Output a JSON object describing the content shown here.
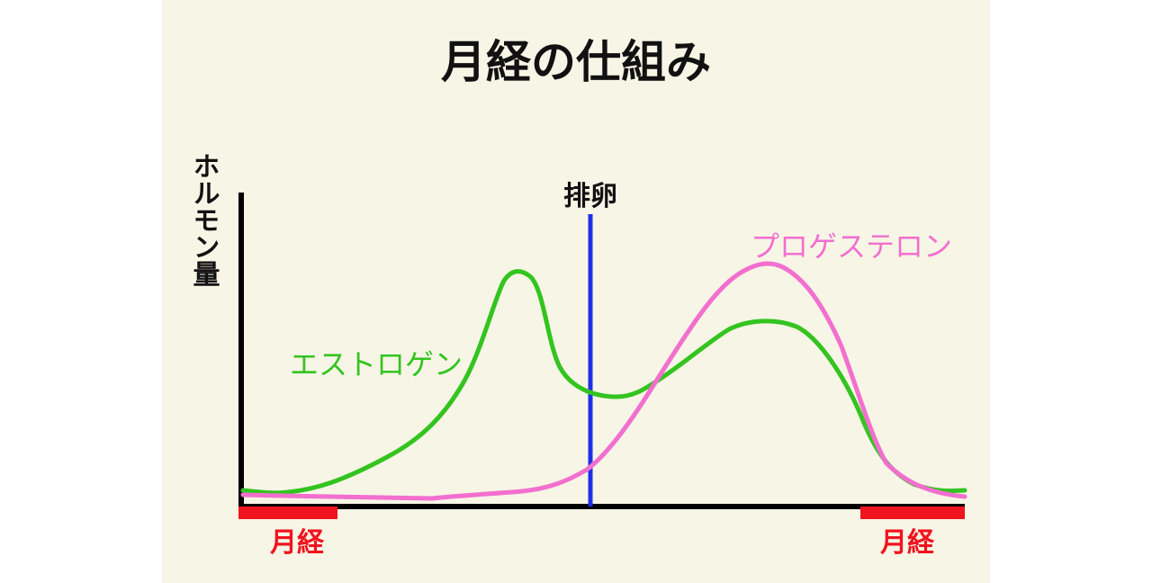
{
  "title": "月経の仕組み",
  "y_axis_label": "ホルモン量",
  "ovulation_label": "排卵",
  "colors": {
    "background": "#f7f5e6",
    "estrogen": "#33c41f",
    "progesterone": "#f26fcf",
    "ovulation": "#1f2fe8",
    "period": "#f0141e",
    "axis": "#000000"
  },
  "series": {
    "estrogen": {
      "label": "エストロゲン"
    },
    "progesterone": {
      "label": "プロゲステロン"
    }
  },
  "periods": {
    "start_label": "月経",
    "end_label": "月経"
  }
}
